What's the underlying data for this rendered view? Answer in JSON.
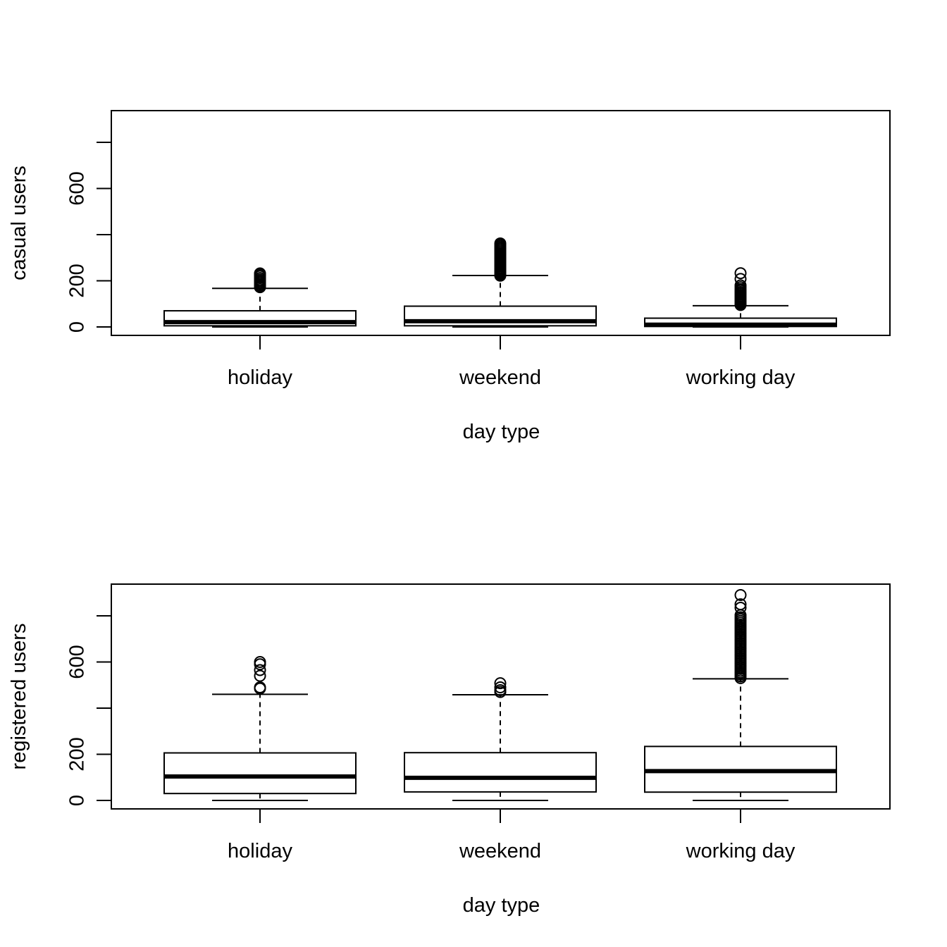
{
  "chart_data": [
    {
      "type": "box",
      "xlabel": "day type",
      "ylabel": "casual users",
      "ylim": [
        0,
        900
      ],
      "yticks": [
        0,
        200,
        400,
        600,
        800
      ],
      "ytick_labels": [
        "0",
        "200",
        "",
        "600",
        ""
      ],
      "categories": [
        "holiday",
        "weekend",
        "working day"
      ],
      "boxes": [
        {
          "category": "holiday",
          "whisker_low": 0,
          "q1": 5,
          "median": 21,
          "q3": 70,
          "whisker_high": 167,
          "outliers": [
            172,
            176,
            181,
            187,
            193,
            199,
            205,
            212,
            220,
            226,
            232
          ]
        },
        {
          "category": "weekend",
          "whisker_low": 0,
          "q1": 5,
          "median": 25,
          "q3": 90,
          "whisker_high": 223,
          "outliers": [
            222,
            226,
            231,
            236,
            241,
            246,
            251,
            256,
            262,
            267,
            272,
            278,
            284,
            290,
            296,
            302,
            308,
            314,
            320,
            326,
            332,
            338,
            344,
            350,
            356,
            362
          ]
        },
        {
          "category": "working day",
          "whisker_low": 0,
          "q1": 2,
          "median": 10,
          "q3": 38,
          "whisker_high": 92,
          "outliers": [
            95,
            99,
            103,
            108,
            113,
            118,
            123,
            128,
            133,
            139,
            145,
            151,
            158,
            164,
            172,
            180,
            208,
            233
          ]
        }
      ]
    },
    {
      "type": "box",
      "xlabel": "day type",
      "ylabel": "registered users",
      "ylim": [
        0,
        900
      ],
      "yticks": [
        0,
        200,
        400,
        600,
        800
      ],
      "ytick_labels": [
        "0",
        "200",
        "",
        "600",
        ""
      ],
      "categories": [
        "holiday",
        "weekend",
        "working day"
      ],
      "boxes": [
        {
          "category": "holiday",
          "whisker_low": 0,
          "q1": 30,
          "median": 104,
          "q3": 206,
          "whisker_high": 460,
          "outliers": [
            485,
            490,
            540,
            565,
            590,
            600
          ]
        },
        {
          "category": "weekend",
          "whisker_low": 0,
          "q1": 37,
          "median": 98,
          "q3": 207,
          "whisker_high": 458,
          "outliers": [
            470,
            478,
            490,
            508
          ]
        },
        {
          "category": "working day",
          "whisker_low": 0,
          "q1": 36,
          "median": 127,
          "q3": 234,
          "whisker_high": 527,
          "outliers": [
            530,
            538,
            546,
            554,
            562,
            570,
            578,
            586,
            594,
            602,
            610,
            618,
            626,
            634,
            642,
            650,
            658,
            666,
            674,
            682,
            690,
            698,
            706,
            714,
            722,
            730,
            738,
            746,
            754,
            762,
            770,
            778,
            786,
            794,
            803,
            835,
            850,
            890
          ]
        }
      ]
    }
  ]
}
